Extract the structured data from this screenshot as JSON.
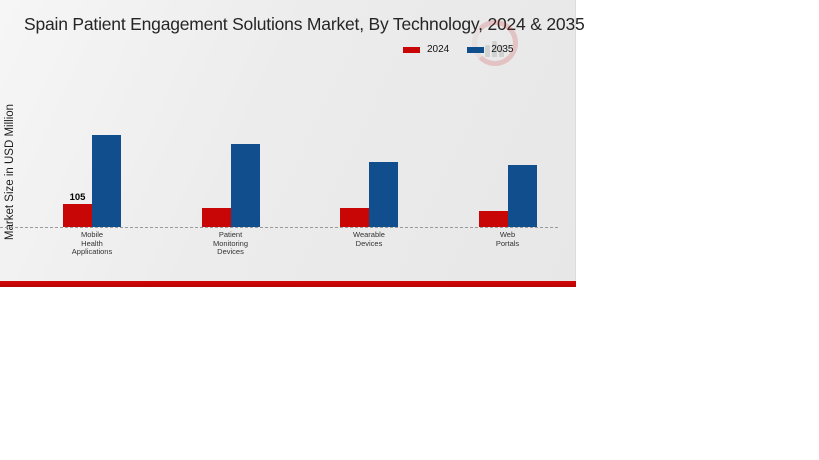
{
  "page": {
    "background": "#ffffff",
    "panel_background": "#ebebec",
    "accent_bar_color": "#c10505"
  },
  "chart_data": {
    "type": "bar",
    "title": "Spain Patient Engagement Solutions Market, By Technology, 2024 & 2035",
    "ylabel": "Market Size in USD Million",
    "xlabel": "",
    "categories": [
      "Mobile Health Applications",
      "Patient Monitoring Devices",
      "Wearable Devices",
      "Web Portals"
    ],
    "categories_display": [
      "Mobile\nHealth\nApplications",
      "Patient\nMonitoring\nDevices",
      "Wearable\nDevices",
      "Web\nPortals"
    ],
    "series": [
      {
        "name": "2024",
        "color": "#c90606",
        "values": [
          105,
          87,
          87,
          73
        ]
      },
      {
        "name": "2035",
        "color": "#104e8d",
        "values": [
          420,
          379,
          297,
          283
        ]
      }
    ],
    "value_labels": [
      {
        "series_index": 0,
        "category_index": 0,
        "text": "105"
      }
    ],
    "ylim": [
      0,
      450
    ],
    "grid": false,
    "axis_ticks_shown": false,
    "legend_position": "top-right",
    "baseline_style": "dashed"
  }
}
